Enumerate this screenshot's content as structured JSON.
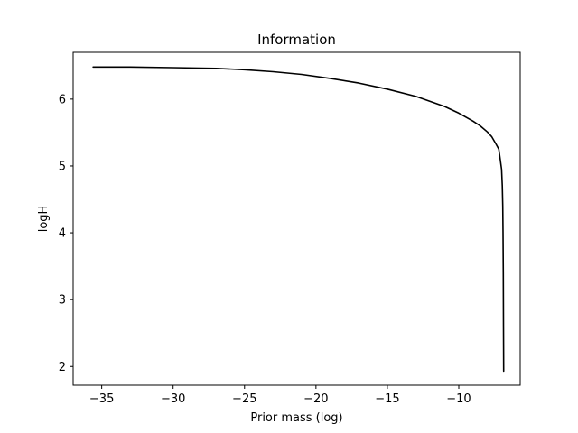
{
  "chart_data": {
    "type": "line",
    "title": "Information",
    "xlabel": "Prior mass (log)",
    "ylabel": "logH",
    "xlim": [
      -37.0,
      -5.7
    ],
    "ylim": [
      1.72,
      6.7
    ],
    "xticks": [
      -35,
      -30,
      -25,
      -20,
      -15,
      -10
    ],
    "xtick_labels": [
      "−35",
      "−30",
      "−25",
      "−20",
      "−15",
      "−10"
    ],
    "yticks": [
      2,
      3,
      4,
      5,
      6
    ],
    "ytick_labels": [
      "2",
      "3",
      "4",
      "5",
      "6"
    ],
    "grid": false,
    "legend": "none",
    "colors": {
      "line": "#000000",
      "axes": "#000000",
      "background": "#ffffff"
    },
    "series": [
      {
        "x": [
          -35.6,
          -33.0,
          -30.0,
          -27.0,
          -25.0,
          -23.0,
          -21.0,
          -19.0,
          -17.0,
          -15.0,
          -13.0,
          -11.0,
          -10.0,
          -9.0,
          -8.5,
          -8.0,
          -7.7,
          -7.4,
          -7.2,
          -7.1,
          -7.0,
          -6.95,
          -6.92,
          -6.9,
          -6.88,
          -6.87,
          -6.86
        ],
        "y": [
          6.48,
          6.48,
          6.47,
          6.46,
          6.44,
          6.41,
          6.37,
          6.31,
          6.24,
          6.15,
          6.04,
          5.89,
          5.79,
          5.67,
          5.6,
          5.51,
          5.44,
          5.33,
          5.25,
          5.1,
          4.95,
          4.7,
          4.4,
          4.0,
          3.4,
          2.6,
          1.93
        ]
      }
    ]
  }
}
